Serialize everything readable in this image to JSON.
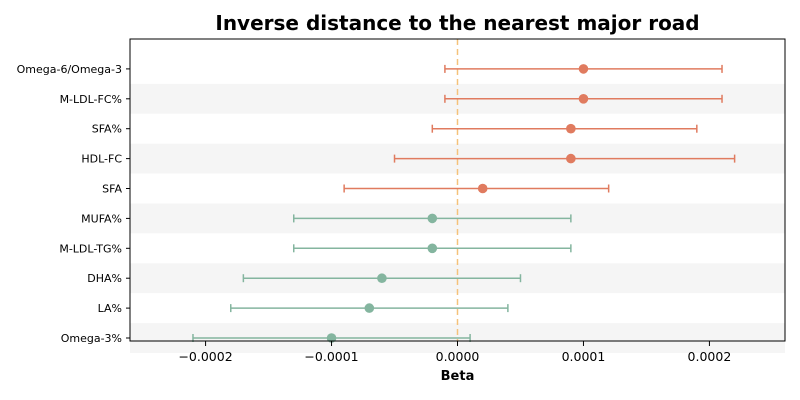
{
  "chart_data": {
    "type": "forest",
    "title": "Inverse distance to the nearest major road",
    "xlabel": "Beta",
    "ylabel": "",
    "xlim": [
      -0.00026,
      0.00026
    ],
    "xticks": [
      -0.0002,
      -0.0001,
      0.0,
      0.0001,
      0.0002
    ],
    "xtick_labels": [
      "−0.0002",
      "−0.0001",
      "0.0000",
      "0.0001",
      "0.0002"
    ],
    "reference_line": 0.0,
    "colors": {
      "positive": "#e07b5f",
      "negative": "#84b59f",
      "reference": "#f5c27a",
      "band": "#f5f5f5"
    },
    "grid": false,
    "categories": [
      "Omega-6/Omega-3",
      "M-LDL-FC%",
      "SFA%",
      "HDL-FC",
      "SFA",
      "MUFA%",
      "M-LDL-TG%",
      "DHA%",
      "LA%",
      "Omega-3%"
    ],
    "estimates": [
      0.0001,
      0.0001,
      9e-05,
      9e-05,
      2e-05,
      -2e-05,
      -2e-05,
      -6e-05,
      -7e-05,
      -0.0001
    ],
    "ci_lower": [
      -1e-05,
      -1e-05,
      -2e-05,
      -5e-05,
      -9e-05,
      -0.00013,
      -0.00013,
      -0.00017,
      -0.00018,
      -0.00021
    ],
    "ci_upper": [
      0.00021,
      0.00021,
      0.00019,
      0.00022,
      0.00012,
      9e-05,
      9e-05,
      5e-05,
      4e-05,
      1e-05
    ]
  }
}
